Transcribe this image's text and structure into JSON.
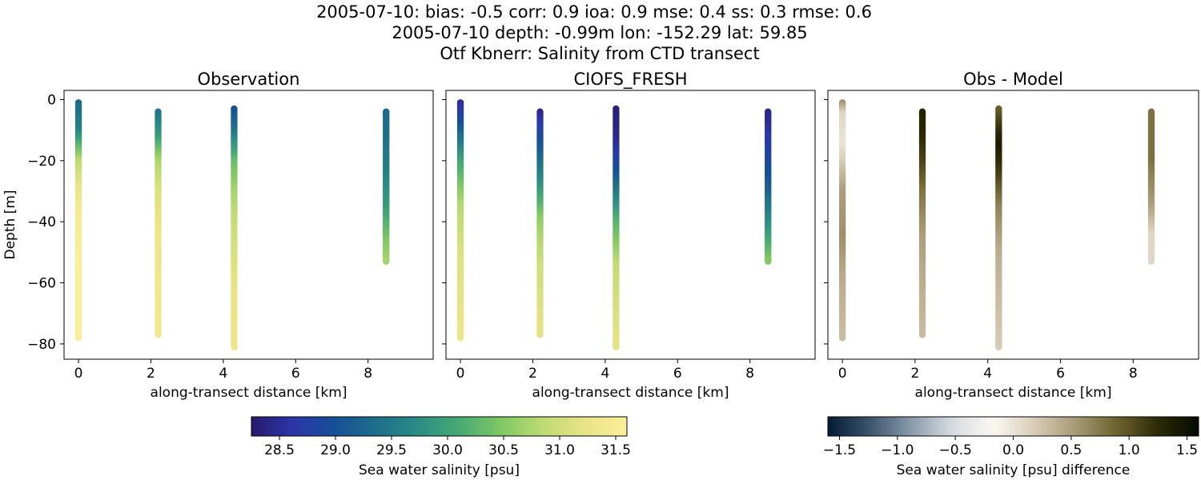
{
  "figure": {
    "title_lines": [
      "2005-07-10: bias: -0.5  corr: 0.9  ioa: 0.9  mse: 0.4  ss: 0.3  rmse: 0.6",
      "2005-07-10 depth: -0.99m lon: -152.29 lat: 59.85",
      "Otf Kbnerr: Salinity from CTD transect"
    ]
  },
  "colors": {
    "salinity_colormap": [
      "#271a6c",
      "#2c36a8",
      "#154f96",
      "#1f6e8a",
      "#2b8c84",
      "#47ab73",
      "#81c765",
      "#bfdb74",
      "#e9e386",
      "#fbef9b"
    ],
    "difference_colormap": [
      "#041b34",
      "#3a536c",
      "#8798aa",
      "#d7dbe0",
      "#fbf8f3",
      "#d9cdb9",
      "#a89a76",
      "#6f6330",
      "#2c2a06",
      "#050b02"
    ]
  },
  "chart_data": [
    {
      "type": "scatter",
      "title": "Observation",
      "xlabel": "along-transect distance [km]",
      "ylabel": "Depth [m]",
      "xlim": [
        -0.4,
        9.8
      ],
      "ylim": [
        -85,
        3
      ],
      "xticks": [
        "0",
        "2",
        "4",
        "6",
        "8"
      ],
      "yticks": [
        "0",
        "−20",
        "−40",
        "−60",
        "−80"
      ],
      "colorscale": "salinity",
      "series": [
        {
          "x": 0.0,
          "depth_top": -1,
          "depth_bottom": -78,
          "profile": [
            [
              -1,
              29.3
            ],
            [
              -10,
              29.6
            ],
            [
              -20,
              30.8
            ],
            [
              -30,
              31.3
            ],
            [
              -40,
              31.5
            ],
            [
              -60,
              31.6
            ],
            [
              -78,
              31.6
            ]
          ]
        },
        {
          "x": 2.2,
          "depth_top": -4,
          "depth_bottom": -77,
          "profile": [
            [
              -4,
              29.4
            ],
            [
              -12,
              29.9
            ],
            [
              -20,
              30.7
            ],
            [
              -30,
              31.1
            ],
            [
              -45,
              31.3
            ],
            [
              -77,
              31.4
            ]
          ]
        },
        {
          "x": 4.3,
          "depth_top": -3,
          "depth_bottom": -81,
          "profile": [
            [
              -3,
              29.0
            ],
            [
              -10,
              29.4
            ],
            [
              -20,
              30.3
            ],
            [
              -30,
              30.7
            ],
            [
              -45,
              31.0
            ],
            [
              -60,
              31.2
            ],
            [
              -81,
              31.3
            ]
          ]
        },
        {
          "x": 8.5,
          "depth_top": -4,
          "depth_bottom": -53,
          "profile": [
            [
              -4,
              29.3
            ],
            [
              -20,
              29.5
            ],
            [
              -35,
              29.9
            ],
            [
              -45,
              30.4
            ],
            [
              -53,
              30.7
            ]
          ]
        }
      ]
    },
    {
      "type": "scatter",
      "title": "CIOFS_FRESH",
      "xlabel": "along-transect distance [km]",
      "ylabel": "",
      "xlim": [
        -0.4,
        9.8
      ],
      "ylim": [
        -85,
        3
      ],
      "xticks": [
        "0",
        "2",
        "4",
        "6",
        "8"
      ],
      "yticks": [],
      "colorscale": "salinity",
      "series": [
        {
          "x": 0.0,
          "depth_top": -1,
          "depth_bottom": -78,
          "profile": [
            [
              -1,
              28.5
            ],
            [
              -8,
              29.0
            ],
            [
              -20,
              30.0
            ],
            [
              -35,
              30.8
            ],
            [
              -50,
              31.1
            ],
            [
              -78,
              31.3
            ]
          ]
        },
        {
          "x": 2.2,
          "depth_top": -4,
          "depth_bottom": -77,
          "profile": [
            [
              -4,
              28.4
            ],
            [
              -12,
              28.9
            ],
            [
              -25,
              29.6
            ],
            [
              -40,
              30.6
            ],
            [
              -55,
              31.0
            ],
            [
              -77,
              31.2
            ]
          ]
        },
        {
          "x": 4.3,
          "depth_top": -3,
          "depth_bottom": -81,
          "profile": [
            [
              -3,
              28.3
            ],
            [
              -15,
              28.5
            ],
            [
              -25,
              29.1
            ],
            [
              -40,
              30.2
            ],
            [
              -55,
              30.9
            ],
            [
              -81,
              31.2
            ]
          ]
        },
        {
          "x": 8.5,
          "depth_top": -4,
          "depth_bottom": -53,
          "profile": [
            [
              -4,
              28.4
            ],
            [
              -15,
              28.7
            ],
            [
              -30,
              29.2
            ],
            [
              -45,
              30.0
            ],
            [
              -53,
              30.5
            ]
          ]
        }
      ]
    },
    {
      "type": "scatter",
      "title": "Obs - Model",
      "xlabel": "along-transect distance [km]",
      "ylabel": "",
      "xlim": [
        -0.4,
        9.8
      ],
      "ylim": [
        -85,
        3
      ],
      "xticks": [
        "0",
        "2",
        "4",
        "6",
        "8"
      ],
      "yticks": [],
      "colorscale": "difference",
      "series": [
        {
          "x": 0.0,
          "depth_top": -1,
          "depth_bottom": -78,
          "profile": [
            [
              -1,
              0.6
            ],
            [
              -5,
              0.1
            ],
            [
              -15,
              0.0
            ],
            [
              -30,
              0.5
            ],
            [
              -45,
              0.6
            ],
            [
              -60,
              0.4
            ],
            [
              -78,
              0.3
            ]
          ]
        },
        {
          "x": 2.2,
          "depth_top": -4,
          "depth_bottom": -77,
          "profile": [
            [
              -4,
              1.3
            ],
            [
              -10,
              1.3
            ],
            [
              -20,
              1.1
            ],
            [
              -30,
              0.8
            ],
            [
              -45,
              0.5
            ],
            [
              -60,
              0.4
            ],
            [
              -77,
              0.3
            ]
          ]
        },
        {
          "x": 4.3,
          "depth_top": -3,
          "depth_bottom": -81,
          "profile": [
            [
              -3,
              0.9
            ],
            [
              -10,
              1.2
            ],
            [
              -15,
              1.4
            ],
            [
              -25,
              1.1
            ],
            [
              -35,
              0.7
            ],
            [
              -50,
              0.4
            ],
            [
              -81,
              0.2
            ]
          ]
        },
        {
          "x": 8.5,
          "depth_top": -4,
          "depth_bottom": -53,
          "profile": [
            [
              -4,
              0.8
            ],
            [
              -20,
              0.8
            ],
            [
              -35,
              0.5
            ],
            [
              -45,
              0.1
            ],
            [
              -53,
              0.1
            ]
          ]
        }
      ]
    },
    {
      "type": "colorbar",
      "label": "Sea water salinity [psu]",
      "range": [
        28.25,
        31.6
      ],
      "ticks": [
        28.5,
        29.0,
        29.5,
        30.0,
        30.5,
        31.0,
        31.5
      ],
      "tick_labels": [
        "28.5",
        "29.0",
        "29.5",
        "30.0",
        "30.5",
        "31.0",
        "31.5"
      ],
      "colorscale": "salinity"
    },
    {
      "type": "colorbar",
      "label": "Sea water salinity [psu] difference",
      "range": [
        -1.6,
        1.6
      ],
      "ticks": [
        -1.5,
        -1.0,
        -0.5,
        0.0,
        0.5,
        1.0,
        1.5
      ],
      "tick_labels": [
        "−1.5",
        "−1.0",
        "−0.5",
        "0.0",
        "0.5",
        "1.0",
        "1.5"
      ],
      "colorscale": "difference"
    }
  ]
}
